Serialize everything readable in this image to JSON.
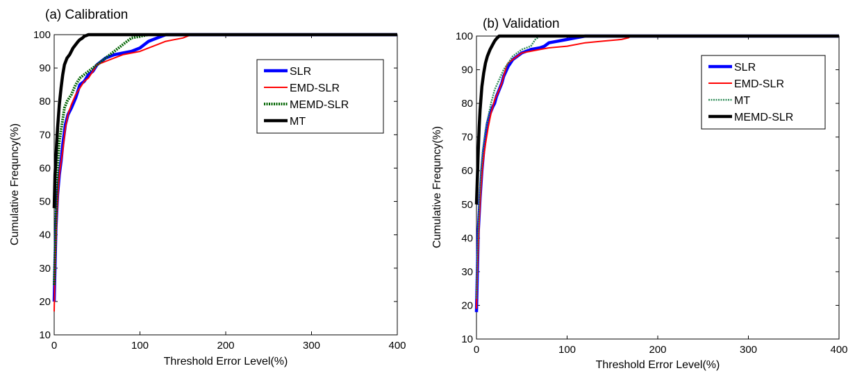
{
  "chart_data": [
    {
      "type": "line",
      "title": "(a) Calibration",
      "xlabel": "Threshold Error Level(%)",
      "ylabel": "Cumulative Frequncy(%)",
      "xlim": [
        0,
        400
      ],
      "ylim": [
        10,
        100
      ],
      "xticks": [
        "0",
        "100",
        "200",
        "300",
        "400"
      ],
      "yticks": [
        "10",
        "20",
        "30",
        "40",
        "50",
        "60",
        "70",
        "80",
        "90",
        "100"
      ],
      "grid": false,
      "legend_position": "top-right",
      "series": [
        {
          "name": "SLR",
          "color": "#0000ff",
          "style": "solid-thick",
          "x": [
            0,
            2,
            4,
            6,
            8,
            10,
            13,
            16,
            20,
            25,
            30,
            35,
            40,
            45,
            50,
            55,
            60,
            70,
            80,
            90,
            100,
            105,
            110,
            115,
            120,
            125,
            130,
            400
          ],
          "y": [
            20,
            42,
            52,
            58,
            62,
            67,
            73,
            76,
            78,
            81,
            85,
            86,
            88,
            89,
            91,
            92,
            93,
            94,
            94.5,
            95,
            96,
            97,
            98,
            98.5,
            99,
            99.5,
            100,
            100
          ]
        },
        {
          "name": "EMD-SLR",
          "color": "#ff0000",
          "style": "solid",
          "x": [
            0,
            1,
            3,
            5,
            7,
            10,
            13,
            16,
            20,
            25,
            30,
            35,
            40,
            45,
            50,
            60,
            70,
            80,
            90,
            100,
            110,
            120,
            130,
            140,
            150,
            160,
            400
          ],
          "y": [
            17,
            30,
            45,
            55,
            60,
            65,
            72,
            76,
            79,
            82,
            84,
            86,
            87,
            89,
            91,
            92,
            93,
            94,
            94.5,
            95,
            96,
            97,
            98,
            98.5,
            99,
            100,
            100
          ]
        },
        {
          "name": "MEMD-SLR",
          "color": "#006400",
          "style": "dotted-thick",
          "x": [
            0,
            2,
            4,
            6,
            9,
            12,
            15,
            20,
            25,
            30,
            35,
            40,
            50,
            60,
            70,
            80,
            90,
            100,
            110,
            120,
            400
          ],
          "y": [
            25,
            45,
            60,
            68,
            73,
            78,
            80,
            82,
            85,
            87,
            88,
            89,
            91,
            93,
            95,
            97,
            99,
            99.5,
            100,
            100,
            100
          ]
        },
        {
          "name": "MT",
          "color": "#000000",
          "style": "solid-thick",
          "x": [
            0,
            1,
            2,
            3,
            4,
            6,
            8,
            10,
            12,
            15,
            18,
            20,
            22,
            25,
            28,
            30,
            33,
            35,
            38,
            40,
            400
          ],
          "y": [
            48,
            58,
            63,
            68,
            72,
            79,
            84,
            88,
            91,
            93,
            94,
            95,
            96,
            97,
            98,
            98.5,
            99,
            99.5,
            99.8,
            100,
            100
          ]
        }
      ]
    },
    {
      "type": "line",
      "title": "(b) Validation",
      "xlabel": "Threshold Error Level(%)",
      "ylabel": "Cumulative Frequncy(%)",
      "xlim": [
        0,
        400
      ],
      "ylim": [
        10,
        100
      ],
      "xticks": [
        "0",
        "100",
        "200",
        "300",
        "400"
      ],
      "yticks": [
        "10",
        "20",
        "30",
        "40",
        "50",
        "60",
        "70",
        "80",
        "90",
        "100"
      ],
      "grid": false,
      "legend_position": "top-right",
      "series": [
        {
          "name": "SLR",
          "color": "#0000ff",
          "style": "solid-thick",
          "x": [
            0,
            1,
            2,
            4,
            6,
            8,
            10,
            12,
            15,
            18,
            20,
            22,
            25,
            28,
            30,
            35,
            40,
            50,
            60,
            70,
            75,
            80,
            90,
            100,
            110,
            120,
            400
          ],
          "y": [
            18,
            30,
            42,
            52,
            60,
            66,
            70,
            74,
            77,
            79,
            80,
            82,
            84,
            86,
            88,
            91,
            93,
            95,
            96,
            96.5,
            97,
            98,
            98.5,
            99,
            99.5,
            100,
            100
          ]
        },
        {
          "name": "EMD-SLR",
          "color": "#ff0000",
          "style": "solid",
          "x": [
            0,
            1,
            3,
            5,
            7,
            10,
            13,
            16,
            20,
            25,
            28,
            30,
            33,
            35,
            40,
            45,
            50,
            60,
            70,
            80,
            100,
            120,
            140,
            160,
            168,
            170,
            400
          ],
          "y": [
            19,
            30,
            45,
            55,
            62,
            68,
            73,
            77,
            81,
            84,
            86,
            88,
            91,
            92,
            93,
            94,
            95,
            95.5,
            96,
            96.5,
            97,
            98,
            98.5,
            99,
            99.5,
            100,
            100
          ]
        },
        {
          "name": "MT",
          "color": "#2e8b57",
          "style": "dotted",
          "x": [
            0,
            1,
            3,
            5,
            7,
            10,
            13,
            16,
            20,
            25,
            30,
            35,
            40,
            50,
            60,
            65,
            70,
            400
          ],
          "y": [
            22,
            35,
            50,
            60,
            66,
            72,
            76,
            80,
            84,
            87,
            90,
            92,
            94,
            96,
            97,
            99,
            100,
            100
          ]
        },
        {
          "name": "MEMD-SLR",
          "color": "#000000",
          "style": "solid-thick",
          "x": [
            0,
            1,
            2,
            3,
            4,
            6,
            8,
            10,
            12,
            15,
            18,
            20,
            22,
            25,
            400
          ],
          "y": [
            50,
            58,
            66,
            73,
            78,
            85,
            89,
            92,
            94,
            96,
            97.5,
            98.5,
            99.2,
            100,
            100
          ]
        }
      ]
    }
  ]
}
